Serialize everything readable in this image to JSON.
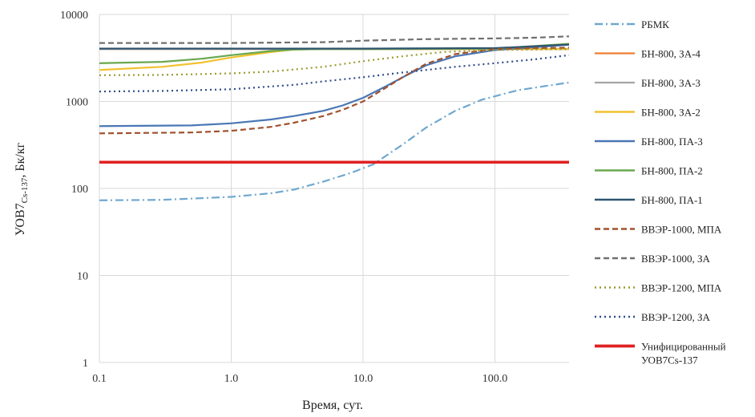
{
  "chart_data": {
    "type": "line",
    "title": "",
    "xlabel": "Время, сут.",
    "ylabel": "УОВ7Cs-137, Бк/кг",
    "ylabel_main": "УОВ7",
    "ylabel_sub": "Cs-137",
    "ylabel_tail": ", Бк/кг",
    "xscale": "log",
    "yscale": "log",
    "xlim": [
      0.1,
      365
    ],
    "ylim": [
      1,
      10000
    ],
    "xticks": [
      0.1,
      1,
      10,
      100
    ],
    "xtick_labels": [
      "0.1",
      "1.0",
      "10.0",
      "100.0"
    ],
    "yticks": [
      1,
      10,
      100,
      1000,
      10000
    ],
    "ytick_labels": [
      "1",
      "10",
      "100",
      "1000",
      "10000"
    ],
    "grid": true,
    "legend_position": "right",
    "series": [
      {
        "name": "РБМК",
        "color": "#6fa8d0",
        "dash": "dashdot",
        "width": 2.2,
        "x": [
          0.1,
          0.3,
          1,
          2,
          3,
          5,
          8,
          12,
          20,
          30,
          50,
          80,
          150,
          365
        ],
        "y": [
          73,
          74,
          80,
          88,
          97,
          120,
          150,
          190,
          320,
          500,
          780,
          1050,
          1350,
          1650
        ]
      },
      {
        "name": "БН-800, ЗА-4",
        "color": "#ed7d31",
        "dash": "solid",
        "width": 2,
        "x": [
          0.1,
          365
        ],
        "y": [
          4000,
          4000
        ]
      },
      {
        "name": "БН-800, ЗА-3",
        "color": "#a5a5a5",
        "dash": "solid",
        "width": 2,
        "x": [
          0.1,
          365
        ],
        "y": [
          4000,
          4000
        ]
      },
      {
        "name": "БН-800, ЗА-2",
        "color": "#f2c12e",
        "dash": "solid",
        "width": 2.2,
        "x": [
          0.1,
          0.3,
          0.6,
          1,
          2,
          3,
          5,
          10,
          365
        ],
        "y": [
          2300,
          2500,
          2800,
          3200,
          3700,
          3950,
          4000,
          4000,
          4000
        ]
      },
      {
        "name": "БН-800, ПА-3",
        "color": "#4a77b5",
        "dash": "solid",
        "width": 2.2,
        "x": [
          0.1,
          0.5,
          1,
          2,
          3,
          5,
          7,
          10,
          15,
          20,
          30,
          50,
          100,
          200,
          365
        ],
        "y": [
          520,
          530,
          560,
          620,
          680,
          780,
          900,
          1100,
          1500,
          1900,
          2600,
          3300,
          3900,
          4200,
          4500
        ]
      },
      {
        "name": "БН-800, ПА-2",
        "color": "#6aa84f",
        "dash": "solid",
        "width": 2.2,
        "x": [
          0.1,
          0.3,
          0.6,
          1,
          2,
          3,
          5,
          10,
          100,
          365
        ],
        "y": [
          2750,
          2850,
          3100,
          3400,
          3800,
          3950,
          4000,
          4000,
          4050,
          4600
        ]
      },
      {
        "name": "БН-800, ПА-1",
        "color": "#2e5572",
        "dash": "solid",
        "width": 2.2,
        "x": [
          0.1,
          10,
          100,
          365
        ],
        "y": [
          4050,
          4050,
          4100,
          4500
        ]
      },
      {
        "name": "ВВЭР-1000, МПА",
        "color": "#a0522d",
        "dash": "dashed",
        "width": 2.2,
        "x": [
          0.1,
          0.5,
          1,
          2,
          3,
          5,
          7,
          10,
          15,
          20,
          30,
          50,
          100,
          200,
          365
        ],
        "y": [
          430,
          440,
          460,
          510,
          570,
          680,
          800,
          1000,
          1450,
          1900,
          2700,
          3500,
          4000,
          4100,
          4150
        ]
      },
      {
        "name": "ВВЭР-1000, ЗА",
        "color": "#707070",
        "dash": "dashed",
        "width": 2.2,
        "x": [
          0.1,
          1,
          5,
          10,
          30,
          100,
          200,
          365
        ],
        "y": [
          4700,
          4700,
          4800,
          5000,
          5200,
          5300,
          5400,
          5600
        ]
      },
      {
        "name": "ВВЭР-1200, МПА",
        "color": "#9c9a2e",
        "dash": "dotted",
        "width": 2.2,
        "x": [
          0.1,
          0.3,
          1,
          2,
          5,
          10,
          20,
          40,
          100,
          365
        ],
        "y": [
          2000,
          2020,
          2100,
          2200,
          2500,
          2900,
          3300,
          3700,
          3900,
          4000
        ]
      },
      {
        "name": "ВВЭР-1200, ЗА",
        "color": "#2f4b8a",
        "dash": "dotted",
        "width": 2.2,
        "x": [
          0.1,
          0.3,
          1,
          3,
          5,
          10,
          20,
          50,
          100,
          200,
          365
        ],
        "y": [
          1300,
          1320,
          1380,
          1550,
          1700,
          1900,
          2150,
          2500,
          2750,
          3050,
          3400
        ]
      },
      {
        "name": "Унифицированный УОВ7Cs-137",
        "label_lines": [
          "Унифицированный",
          "УОВ7Cs-137"
        ],
        "color": "#e02020",
        "dash": "solid",
        "width": 3.5,
        "x": [
          0.1,
          365
        ],
        "y": [
          200,
          200
        ]
      }
    ]
  }
}
